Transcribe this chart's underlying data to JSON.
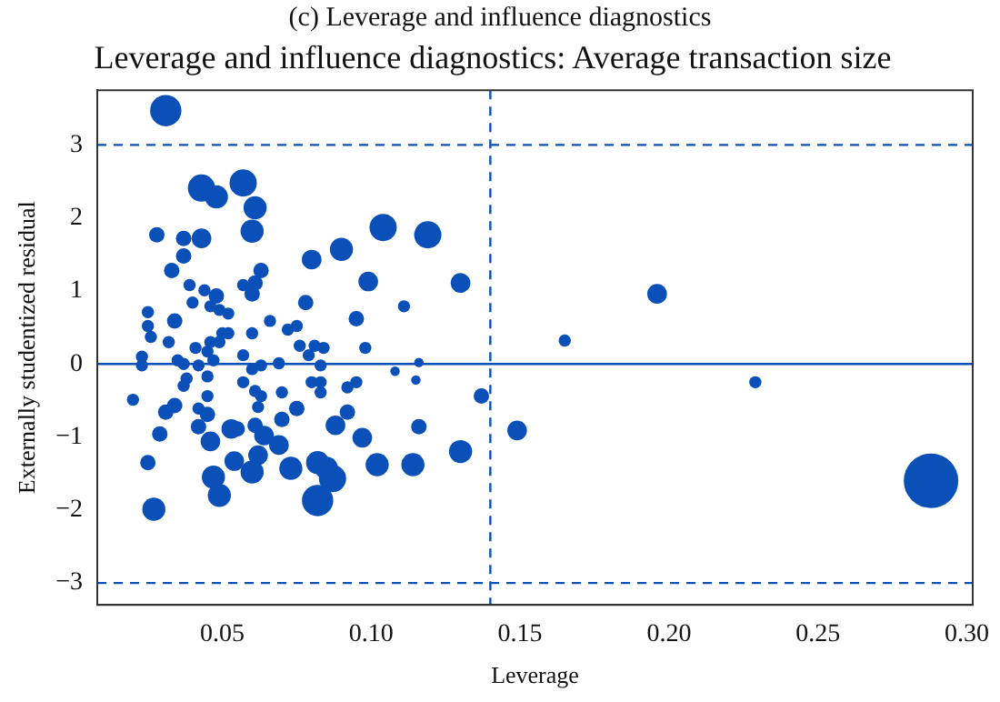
{
  "chart_data": {
    "type": "bubble",
    "title": "Leverage and influence diagnostics: Average transaction size",
    "xlabel": "Leverage",
    "ylabel": "Externally studentized residual",
    "annotations": [
      "(c) Leverage and influence diagnostics"
    ],
    "xlim": [
      0.008,
      0.302
    ],
    "ylim": [
      -3.3,
      3.75
    ],
    "xticks": [
      {
        "value": 0.05,
        "label": "0.05"
      },
      {
        "value": 0.1,
        "label": "0.10"
      },
      {
        "value": 0.15,
        "label": "0.15"
      },
      {
        "value": 0.2,
        "label": "0.20"
      },
      {
        "value": 0.25,
        "label": "0.25"
      },
      {
        "value": 0.3,
        "label": "0.30"
      }
    ],
    "yticks": [
      {
        "value": -3,
        "label": "−3"
      },
      {
        "value": -2,
        "label": "−2"
      },
      {
        "value": -1,
        "label": "−1"
      },
      0,
      1,
      2,
      3
    ],
    "grid": false,
    "legend": false,
    "marker": "circle",
    "ref_lines": [
      {
        "axis": "y",
        "value": 0,
        "line_style": "solid",
        "color": "#0a50b8"
      },
      {
        "axis": "y",
        "value": 3,
        "line_style": "dashed",
        "color": "#0a50b8"
      },
      {
        "axis": "y",
        "value": -3,
        "line_style": "dashed",
        "color": "#0a50b8"
      },
      {
        "axis": "x",
        "value": 0.14,
        "line_style": "dashed",
        "color": "#0a50b8"
      }
    ],
    "series": [
      {
        "color": "#0a50b8",
        "x": [
          0.031,
          0.043,
          0.048,
          0.057,
          0.061,
          0.06,
          0.028,
          0.037,
          0.043,
          0.037,
          0.033,
          0.039,
          0.044,
          0.063,
          0.057,
          0.061,
          0.08,
          0.09,
          0.104,
          0.099,
          0.078,
          0.119,
          0.13,
          0.111,
          0.196,
          0.165,
          0.115,
          0.108,
          0.116,
          0.137,
          0.229,
          0.149,
          0.116,
          0.13,
          0.102,
          0.114,
          0.288,
          0.095,
          0.098,
          0.066,
          0.06,
          0.072,
          0.075,
          0.076,
          0.081,
          0.084,
          0.079,
          0.083,
          0.069,
          0.063,
          0.057,
          0.06,
          0.08,
          0.083,
          0.083,
          0.095,
          0.092,
          0.07,
          0.063,
          0.057,
          0.062,
          0.075,
          0.07,
          0.092,
          0.088,
          0.061,
          0.055,
          0.064,
          0.069,
          0.097,
          0.054,
          0.062,
          0.073,
          0.06,
          0.047,
          0.049,
          0.082,
          0.085,
          0.087,
          0.082,
          0.025,
          0.025,
          0.026,
          0.023,
          0.023,
          0.02,
          0.029,
          0.025,
          0.027,
          0.031,
          0.034,
          0.032,
          0.034,
          0.041,
          0.037,
          0.035,
          0.038,
          0.037,
          0.042,
          0.045,
          0.047,
          0.045,
          0.046,
          0.049,
          0.05,
          0.052,
          0.049,
          0.052,
          0.046,
          0.04,
          0.048,
          0.045,
          0.045,
          0.042,
          0.042,
          0.046,
          0.053,
          0.06,
          0.061
        ],
        "values": [
          3.47,
          2.41,
          2.29,
          2.48,
          2.14,
          1.82,
          1.77,
          1.72,
          1.72,
          1.48,
          1.28,
          1.08,
          1.01,
          1.28,
          1.08,
          1.11,
          1.43,
          1.57,
          1.87,
          1.13,
          0.84,
          1.77,
          1.11,
          0.79,
          0.96,
          0.32,
          -0.22,
          -0.1,
          0.02,
          -0.44,
          -0.25,
          -0.91,
          -0.86,
          -1.2,
          -1.38,
          -1.38,
          -1.6,
          0.62,
          0.22,
          0.59,
          0.42,
          0.47,
          0.52,
          0.25,
          0.25,
          0.22,
          0.12,
          -0.02,
          0.01,
          -0.02,
          0.12,
          -0.07,
          -0.25,
          -0.25,
          -0.39,
          -0.25,
          -0.32,
          -0.39,
          -0.44,
          -0.25,
          -0.59,
          -0.61,
          -0.76,
          -0.66,
          -0.84,
          -0.84,
          -0.89,
          -0.98,
          -1.11,
          -1.01,
          -1.33,
          -1.25,
          -1.43,
          -1.48,
          -1.55,
          -1.8,
          -1.35,
          -1.43,
          -1.57,
          -1.87,
          0.71,
          0.52,
          0.37,
          0.1,
          -0.02,
          -0.49,
          -0.96,
          -1.35,
          -1.99,
          -0.66,
          -0.57,
          0.3,
          0.59,
          0.22,
          0.0,
          0.05,
          -0.2,
          -0.3,
          -0.02,
          -0.17,
          0.05,
          0.17,
          0.3,
          0.3,
          0.42,
          0.42,
          0.74,
          0.69,
          0.79,
          0.84,
          0.93,
          -0.44,
          -0.69,
          -0.61,
          -0.86,
          -1.06,
          -0.89,
          0.96,
          -0.37
        ],
        "sizes": [
          0.33,
          0.25,
          0.18,
          0.25,
          0.18,
          0.18,
          0.08,
          0.08,
          0.13,
          0.08,
          0.08,
          0.05,
          0.05,
          0.08,
          0.05,
          0.08,
          0.13,
          0.18,
          0.25,
          0.13,
          0.08,
          0.25,
          0.13,
          0.05,
          0.13,
          0.05,
          0.03,
          0.03,
          0.03,
          0.08,
          0.05,
          0.13,
          0.08,
          0.18,
          0.18,
          0.18,
          1,
          0.08,
          0.05,
          0.05,
          0.05,
          0.05,
          0.05,
          0.05,
          0.05,
          0.05,
          0.05,
          0.05,
          0.05,
          0.05,
          0.05,
          0.05,
          0.05,
          0.05,
          0.05,
          0.05,
          0.05,
          0.05,
          0.05,
          0.05,
          0.05,
          0.08,
          0.08,
          0.08,
          0.13,
          0.08,
          0.08,
          0.13,
          0.13,
          0.13,
          0.13,
          0.13,
          0.18,
          0.18,
          0.18,
          0.18,
          0.18,
          0.18,
          0.25,
          0.33,
          0.05,
          0.05,
          0.05,
          0.05,
          0.05,
          0.05,
          0.08,
          0.08,
          0.18,
          0.08,
          0.08,
          0.05,
          0.08,
          0.05,
          0.05,
          0.05,
          0.05,
          0.05,
          0.05,
          0.05,
          0.05,
          0.05,
          0.05,
          0.05,
          0.05,
          0.05,
          0.05,
          0.05,
          0.05,
          0.05,
          0.08,
          0.05,
          0.08,
          0.05,
          0.08,
          0.13,
          0.13,
          0.08,
          0.05
        ]
      }
    ]
  }
}
